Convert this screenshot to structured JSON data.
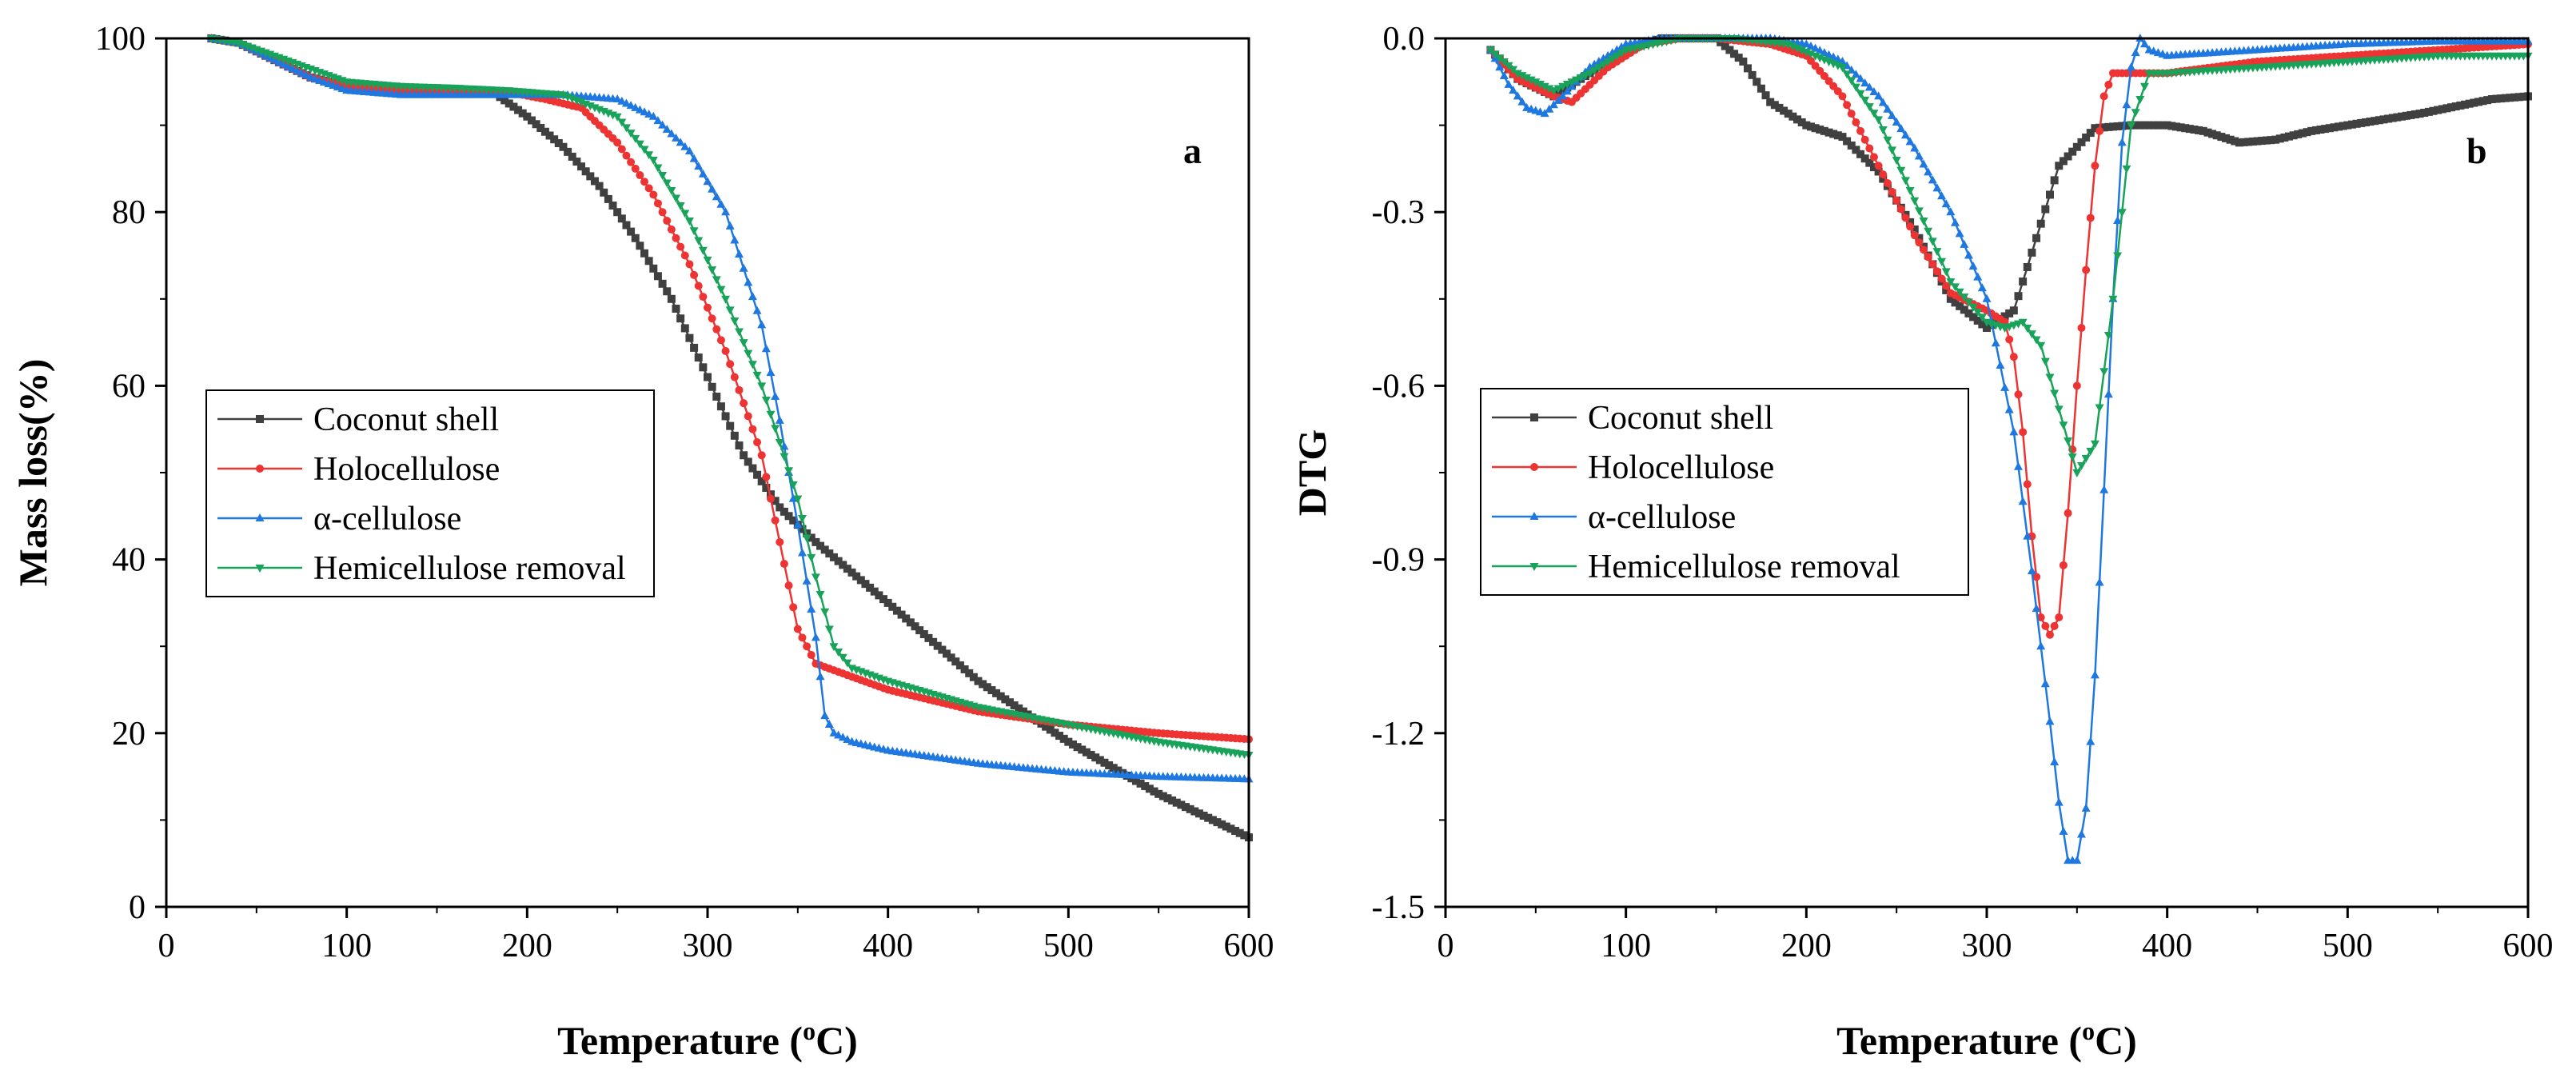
{
  "chart_data": [
    {
      "type": "line",
      "panel_label": "a",
      "xlabel": "Temperature (",
      "xlabel_sup": "o",
      "xlabel_tail": "C)",
      "ylabel": "Mass loss(%)",
      "xlim": [
        0,
        600
      ],
      "ylim": [
        0,
        100
      ],
      "xticks": [
        0,
        100,
        200,
        300,
        400,
        500,
        600
      ],
      "yticks": [
        0,
        20,
        40,
        60,
        80,
        100
      ],
      "legend_position": "middle-left",
      "series": [
        {
          "name": "Coconut shell",
          "color": "#404040",
          "marker": "square",
          "x": [
            25,
            40,
            60,
            80,
            100,
            130,
            160,
            180,
            200,
            220,
            240,
            260,
            280,
            300,
            320,
            340,
            360,
            380,
            400,
            450,
            500,
            550,
            600
          ],
          "y": [
            100,
            99.5,
            97.5,
            95.5,
            94.5,
            94.3,
            94.1,
            94,
            91,
            87.5,
            83,
            77,
            70,
            61,
            52,
            46,
            42,
            38.5,
            35,
            26,
            19,
            13,
            8
          ]
        },
        {
          "name": "Holocellulose",
          "color": "#ee3333",
          "marker": "circle",
          "x": [
            25,
            40,
            60,
            80,
            100,
            130,
            160,
            190,
            210,
            230,
            250,
            270,
            290,
            310,
            330,
            340,
            350,
            360,
            380,
            400,
            450,
            500,
            550,
            600
          ],
          "y": [
            100,
            99.5,
            97.5,
            95.5,
            94.5,
            94,
            94,
            93.8,
            93,
            92,
            88,
            82,
            74,
            64,
            52,
            42,
            32,
            28,
            26.5,
            25,
            22.5,
            21,
            20,
            19.3
          ]
        },
        {
          "name": "α-cellulose",
          "color": "#1f77e0",
          "marker": "triangle-up",
          "x": [
            25,
            40,
            60,
            80,
            100,
            130,
            160,
            190,
            220,
            250,
            270,
            290,
            310,
            330,
            340,
            350,
            360,
            365,
            370,
            380,
            400,
            450,
            500,
            550,
            600
          ],
          "y": [
            100,
            99.5,
            97.5,
            95.5,
            94,
            93.5,
            93.5,
            93.5,
            93.5,
            93,
            91,
            87,
            80,
            67,
            56,
            44,
            31,
            22,
            20,
            19,
            18,
            16.5,
            15.5,
            15,
            14.7
          ]
        },
        {
          "name": "Hemicellulose removal",
          "color": "#19a35a",
          "marker": "triangle-down",
          "x": [
            25,
            40,
            60,
            80,
            100,
            130,
            160,
            190,
            220,
            250,
            270,
            290,
            310,
            330,
            350,
            360,
            370,
            380,
            400,
            450,
            500,
            550,
            600
          ],
          "y": [
            100,
            99.5,
            98,
            96.5,
            95,
            94.5,
            94.3,
            94,
            93.5,
            91,
            86,
            79,
            70,
            60,
            47,
            38,
            30,
            27.5,
            26,
            23,
            21,
            19,
            17.5
          ]
        }
      ]
    },
    {
      "type": "line",
      "panel_label": "b",
      "xlabel": "Temperature (",
      "xlabel_sup": "o",
      "xlabel_tail": "C)",
      "ylabel": "DTG",
      "xlim": [
        0,
        600
      ],
      "ylim": [
        -1.5,
        0.0
      ],
      "xticks": [
        0,
        100,
        200,
        300,
        400,
        500,
        600
      ],
      "yticks": [
        0.0,
        -0.3,
        -0.6,
        -0.9,
        -1.2,
        -1.5
      ],
      "ytick_labels": [
        "0.0",
        "-0.3",
        "-0.6",
        "-0.9",
        "-1.2",
        "-1.5"
      ],
      "legend_position": "middle-left",
      "series": [
        {
          "name": "Coconut shell",
          "color": "#404040",
          "marker": "square",
          "x": [
            25,
            40,
            60,
            80,
            100,
            120,
            150,
            165,
            180,
            200,
            220,
            240,
            260,
            280,
            300,
            315,
            325,
            340,
            360,
            380,
            400,
            420,
            440,
            460,
            480,
            500,
            540,
            580,
            600
          ],
          "y": [
            -0.02,
            -0.07,
            -0.1,
            -0.06,
            -0.02,
            0,
            0,
            -0.04,
            -0.11,
            -0.15,
            -0.17,
            -0.23,
            -0.33,
            -0.45,
            -0.5,
            -0.47,
            -0.37,
            -0.22,
            -0.155,
            -0.15,
            -0.15,
            -0.16,
            -0.18,
            -0.175,
            -0.16,
            -0.15,
            -0.13,
            -0.105,
            -0.1
          ]
        },
        {
          "name": "Holocellulose",
          "color": "#ee3333",
          "marker": "circle",
          "x": [
            25,
            40,
            60,
            70,
            90,
            110,
            130,
            150,
            180,
            200,
            220,
            240,
            260,
            280,
            300,
            310,
            315,
            320,
            325,
            330,
            335,
            340,
            345,
            350,
            355,
            360,
            365,
            370,
            380,
            400,
            450,
            500,
            550,
            600
          ],
          "y": [
            -0.02,
            -0.07,
            -0.1,
            -0.11,
            -0.05,
            -0.01,
            0,
            0,
            -0.01,
            -0.03,
            -0.1,
            -0.22,
            -0.34,
            -0.44,
            -0.47,
            -0.49,
            -0.55,
            -0.68,
            -0.86,
            -1.0,
            -1.03,
            -1.0,
            -0.82,
            -0.6,
            -0.4,
            -0.22,
            -0.1,
            -0.06,
            -0.06,
            -0.06,
            -0.04,
            -0.03,
            -0.02,
            -0.01
          ]
        },
        {
          "name": "α-cellulose",
          "color": "#1f77e0",
          "marker": "triangle-up",
          "x": [
            25,
            35,
            45,
            55,
            65,
            80,
            100,
            120,
            150,
            180,
            200,
            220,
            240,
            260,
            280,
            300,
            315,
            325,
            335,
            340,
            345,
            350,
            355,
            360,
            365,
            370,
            375,
            380,
            385,
            390,
            400,
            450,
            500,
            550,
            600
          ],
          "y": [
            -0.02,
            -0.08,
            -0.12,
            -0.13,
            -0.1,
            -0.05,
            -0.01,
            0,
            0,
            0,
            -0.01,
            -0.04,
            -0.1,
            -0.19,
            -0.3,
            -0.45,
            -0.68,
            -0.92,
            -1.18,
            -1.32,
            -1.42,
            -1.42,
            -1.33,
            -1.1,
            -0.78,
            -0.45,
            -0.18,
            -0.05,
            0,
            -0.02,
            -0.03,
            -0.02,
            -0.01,
            -0.005,
            -0.005
          ]
        },
        {
          "name": "Hemicellulose removal",
          "color": "#19a35a",
          "marker": "triangle-down",
          "x": [
            25,
            40,
            60,
            80,
            100,
            130,
            160,
            190,
            220,
            240,
            260,
            280,
            300,
            310,
            320,
            330,
            340,
            350,
            360,
            370,
            380,
            390,
            400,
            450,
            500,
            550,
            600
          ],
          "y": [
            -0.02,
            -0.06,
            -0.09,
            -0.06,
            -0.02,
            0,
            0,
            -0.01,
            -0.05,
            -0.14,
            -0.28,
            -0.42,
            -0.49,
            -0.5,
            -0.49,
            -0.53,
            -0.64,
            -0.75,
            -0.7,
            -0.45,
            -0.15,
            -0.06,
            -0.06,
            -0.05,
            -0.04,
            -0.03,
            -0.03
          ]
        }
      ]
    }
  ]
}
